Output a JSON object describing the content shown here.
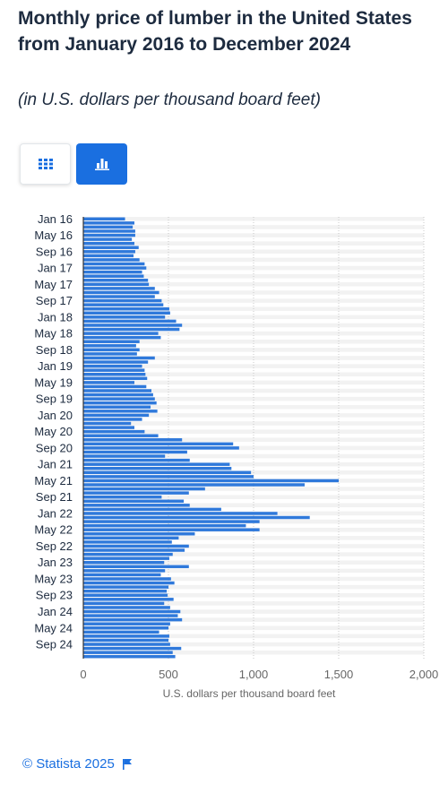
{
  "header": {
    "title": "Monthly price of lumber in the United States from January 2016 to December 2024",
    "subtitle": "(in U.S. dollars per thousand board feet)"
  },
  "toolbar": {
    "table_icon": "grid-icon",
    "chart_icon": "bar-chart-icon"
  },
  "footer": {
    "copyright": "© Statista 2025",
    "flag_icon": "flag-icon"
  },
  "colors": {
    "bar": "#2f79db",
    "accent": "#1a6fe0",
    "text": "#1d2b3f",
    "axis_text": "#666666",
    "band": "#f2f2f2"
  },
  "chart_data": {
    "type": "bar",
    "orientation": "horizontal",
    "xlabel": "U.S. dollars per thousand board feet",
    "ylabel": "",
    "xlim": [
      0,
      2000
    ],
    "x_ticks": [
      "0",
      "500",
      "1,000",
      "1,500",
      "2,000"
    ],
    "y_tick_labels": [
      "Jan 16",
      "May 16",
      "Sep 16",
      "Jan 17",
      "May 17",
      "Sep 17",
      "Jan 18",
      "May 18",
      "Sep 18",
      "Jan 19",
      "May 19",
      "Sep 19",
      "Jan 20",
      "May 20",
      "Sep 20",
      "Jan 21",
      "May 21",
      "Sep 21",
      "Jan 22",
      "May 22",
      "Sep 22",
      "Jan 23",
      "May 23",
      "Sep 23",
      "Jan 24",
      "May 24",
      "Sep 24"
    ],
    "grid": true,
    "categories": [
      "Jan 16",
      "Feb 16",
      "Mar 16",
      "Apr 16",
      "May 16",
      "Jun 16",
      "Jul 16",
      "Aug 16",
      "Sep 16",
      "Oct 16",
      "Nov 16",
      "Dec 16",
      "Jan 17",
      "Feb 17",
      "Mar 17",
      "Apr 17",
      "May 17",
      "Jun 17",
      "Jul 17",
      "Aug 17",
      "Sep 17",
      "Oct 17",
      "Nov 17",
      "Dec 17",
      "Jan 18",
      "Feb 18",
      "Mar 18",
      "Apr 18",
      "May 18",
      "Jun 18",
      "Jul 18",
      "Aug 18",
      "Sep 18",
      "Oct 18",
      "Nov 18",
      "Dec 18",
      "Jan 19",
      "Feb 19",
      "Mar 19",
      "Apr 19",
      "May 19",
      "Jun 19",
      "Jul 19",
      "Aug 19",
      "Sep 19",
      "Oct 19",
      "Nov 19",
      "Dec 19",
      "Jan 20",
      "Feb 20",
      "Mar 20",
      "Apr 20",
      "May 20",
      "Jun 20",
      "Jul 20",
      "Aug 20",
      "Sep 20",
      "Oct 20",
      "Nov 20",
      "Dec 20",
      "Jan 21",
      "Feb 21",
      "Mar 21",
      "Apr 21",
      "May 21",
      "Jun 21",
      "Jul 21",
      "Aug 21",
      "Sep 21",
      "Oct 21",
      "Nov 21",
      "Dec 21",
      "Jan 22",
      "Feb 22",
      "Mar 22",
      "Apr 22",
      "May 22",
      "Jun 22",
      "Jul 22",
      "Aug 22",
      "Sep 22",
      "Oct 22",
      "Nov 22",
      "Dec 22",
      "Jan 23",
      "Feb 23",
      "Mar 23",
      "Apr 23",
      "May 23",
      "Jun 23",
      "Jul 23",
      "Aug 23",
      "Sep 23",
      "Oct 23",
      "Nov 23",
      "Dec 23",
      "Jan 24",
      "Feb 24",
      "Mar 24",
      "Apr 24",
      "May 24",
      "Jun 24",
      "Jul 24",
      "Aug 24",
      "Sep 24",
      "Oct 24",
      "Nov 24",
      "Dec 24"
    ],
    "values": [
      245,
      300,
      290,
      305,
      305,
      285,
      300,
      325,
      305,
      295,
      330,
      360,
      370,
      345,
      355,
      380,
      385,
      420,
      445,
      420,
      460,
      470,
      505,
      510,
      480,
      545,
      580,
      565,
      440,
      455,
      330,
      310,
      330,
      315,
      420,
      380,
      345,
      360,
      365,
      375,
      300,
      370,
      400,
      410,
      420,
      430,
      395,
      435,
      385,
      345,
      280,
      300,
      360,
      440,
      580,
      880,
      915,
      610,
      480,
      625,
      860,
      870,
      985,
      1000,
      1500,
      1300,
      715,
      620,
      460,
      590,
      625,
      810,
      1140,
      1330,
      1035,
      955,
      1035,
      655,
      560,
      520,
      620,
      595,
      525,
      505,
      475,
      620,
      480,
      455,
      515,
      535,
      500,
      490,
      495,
      530,
      475,
      510,
      570,
      555,
      580,
      510,
      500,
      445,
      505,
      500,
      510,
      575,
      525,
      540
    ]
  }
}
